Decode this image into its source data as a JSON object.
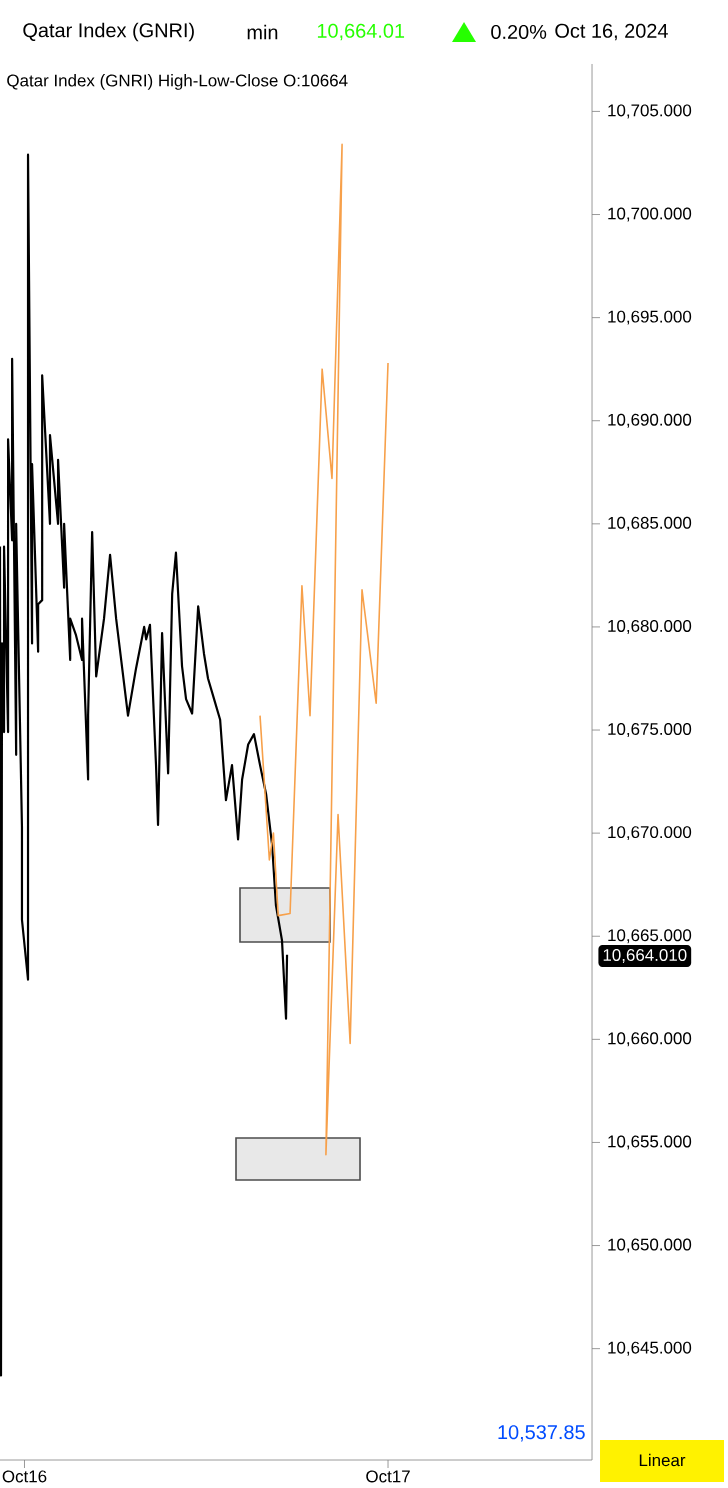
{
  "chart_data": {
    "type": "line",
    "title": "Qatar Index  (GNRI)",
    "annotations": [
      "min",
      "10,664.01",
      "0.20%",
      "Oct 16, 2024",
      "Qatar Index (GNRI)  High-Low-Close   O:10664",
      "10,664.010",
      "10,537.85",
      "Linear"
    ],
    "xlim": [
      "2024-10-15T22:23",
      "2024-10-17T13:28"
    ],
    "xticks": [
      {
        "value": "2024-10-16",
        "label": "Oct16"
      },
      {
        "value": "2024-10-17",
        "label": "Oct17"
      }
    ],
    "ylim": [
      10639.6,
      10707.3
    ],
    "yticks": [
      {
        "value": 10645,
        "label": "10,645.000"
      },
      {
        "value": 10650,
        "label": "10,650.000"
      },
      {
        "value": 10655,
        "label": "10,655.000"
      },
      {
        "value": 10660,
        "label": "10,660.000"
      },
      {
        "value": 10665,
        "label": "10,665.000"
      },
      {
        "value": 10670,
        "label": "10,670.000"
      },
      {
        "value": 10675,
        "label": "10,675.000"
      },
      {
        "value": 10680,
        "label": "10,680.000"
      },
      {
        "value": 10685,
        "label": "10,685.000"
      },
      {
        "value": 10690,
        "label": "10,690.000"
      },
      {
        "value": 10695,
        "label": "10,695.000"
      },
      {
        "value": 10700,
        "label": "10,700.000"
      },
      {
        "value": 10705,
        "label": "10,705.000"
      }
    ],
    "grid": false,
    "marker": "none",
    "series": [
      {
        "color": "#000000",
        "x": [
          "2024-10-15T22:23",
          "2024-10-15T22:27",
          "2024-10-15T22:31",
          "2024-10-15T22:39",
          "2024-10-15T22:39",
          "2024-10-15T22:55",
          "2024-10-15T22:55",
          "2024-10-15T23:11",
          "2024-10-15T23:11",
          "2024-10-15T23:27",
          "2024-10-15T23:27",
          "2024-10-15T23:50",
          "2024-10-15T23:50",
          "2024-10-16T00:14",
          "2024-10-16T00:14",
          "2024-10-16T00:30",
          "2024-10-16T00:30",
          "2024-10-16T00:54",
          "2024-10-16T00:54",
          "2024-10-16T01:10",
          "2024-10-16T01:10",
          "2024-10-16T01:41",
          "2024-10-16T01:41",
          "2024-10-16T02:13",
          "2024-10-16T02:13",
          "2024-10-16T02:37",
          "2024-10-16T02:37",
          "2024-10-16T03:01",
          "2024-10-16T03:01",
          "2024-10-16T03:24",
          "2024-10-16T03:48",
          "2024-10-16T03:48",
          "2024-10-16T04:12",
          "2024-10-16T04:12",
          "2024-10-16T04:28",
          "2024-10-16T04:44",
          "2024-10-16T05:15",
          "2024-10-16T05:39",
          "2024-10-16T06:03",
          "2024-10-16T06:34",
          "2024-10-16T06:50",
          "2024-10-16T07:22",
          "2024-10-16T07:54",
          "2024-10-16T08:02",
          "2024-10-16T08:17",
          "2024-10-16T08:41",
          "2024-10-16T08:49",
          "2024-10-16T09:05",
          "2024-10-16T09:29",
          "2024-10-16T09:45",
          "2024-10-16T10:00",
          "2024-10-16T10:24",
          "2024-10-16T10:40",
          "2024-10-16T11:04",
          "2024-10-16T11:28",
          "2024-10-16T11:51",
          "2024-10-16T12:07",
          "2024-10-16T12:31",
          "2024-10-16T12:55",
          "2024-10-16T13:18",
          "2024-10-16T13:42",
          "2024-10-16T14:06",
          "2024-10-16T14:22",
          "2024-10-16T14:46",
          "2024-10-16T15:09",
          "2024-10-16T15:33",
          "2024-10-16T15:57",
          "2024-10-16T16:21",
          "2024-10-16T16:36",
          "2024-10-16T17:00",
          "2024-10-16T17:16",
          "2024-10-16T17:20"
        ],
        "values": [
          10683.9,
          10643.7,
          10679.2,
          10674.9,
          10683.9,
          10674.9,
          10689.1,
          10684.2,
          10693.0,
          10673.8,
          10685.0,
          10670.3,
          10665.8,
          10662.9,
          10702.9,
          10679.2,
          10687.9,
          10678.8,
          10681.1,
          10681.3,
          10692.2,
          10685.0,
          10689.3,
          10685.0,
          10688.1,
          10681.9,
          10685.0,
          10678.4,
          10680.4,
          10679.6,
          10678.4,
          10680.4,
          10672.6,
          10675.7,
          10684.6,
          10677.6,
          10680.4,
          10683.5,
          10680.4,
          10677.3,
          10675.7,
          10678.0,
          10680.0,
          10679.4,
          10680.1,
          10673.3,
          10670.4,
          10679.7,
          10672.9,
          10681.6,
          10683.6,
          10678.1,
          10676.5,
          10675.8,
          10681.0,
          10678.7,
          10677.5,
          10676.5,
          10675.5,
          10671.6,
          10673.3,
          10669.7,
          10672.6,
          10674.3,
          10674.8,
          10673.3,
          10671.9,
          10669.4,
          10666.5,
          10664.8,
          10661.0,
          10664.1
        ]
      },
      {
        "color": "#f7a04a",
        "x": [
          "2024-10-16T15:33",
          "2024-10-16T16:10",
          "2024-10-16T16:26",
          "2024-10-16T16:45",
          "2024-10-16T17:32",
          "2024-10-16T18:19",
          "2024-10-16T18:51",
          "2024-10-16T19:39",
          "2024-10-16T20:18",
          "2024-10-16T20:58",
          "2024-10-16T19:54",
          "2024-10-16T20:42",
          "2024-10-16T21:30",
          "2024-10-16T22:17",
          "2024-10-16T23:13",
          "2024-10-17T00:00"
        ],
        "values": [
          10675.7,
          10668.7,
          10670.0,
          10666.0,
          10666.1,
          10682.0,
          10675.7,
          10692.5,
          10687.2,
          10703.4,
          10654.4,
          10670.9,
          10659.8,
          10681.8,
          10676.3,
          10692.8
        ]
      }
    ]
  }
}
